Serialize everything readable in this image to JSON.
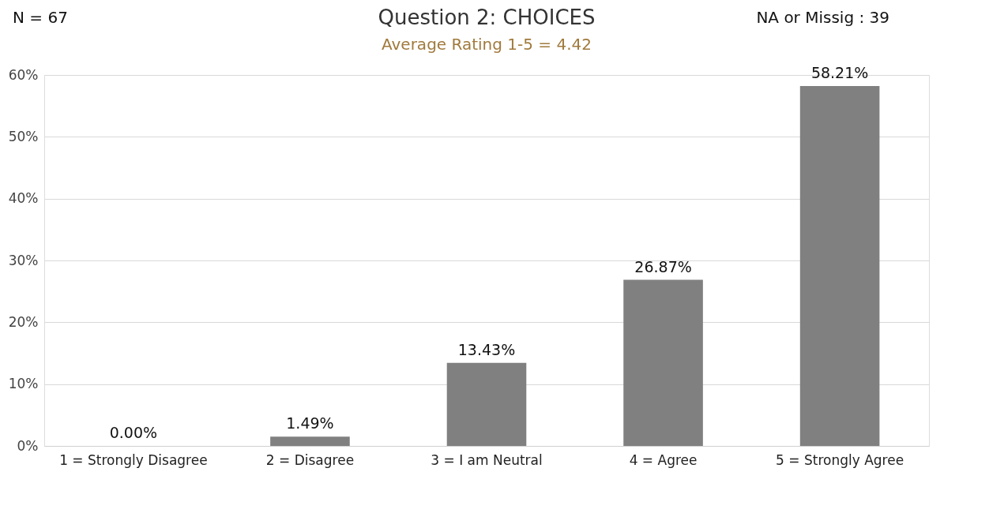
{
  "chart_data": {
    "type": "bar",
    "title": "Question 2: CHOICES",
    "subtitle": "Average Rating 1-5 = 4.42",
    "categories": [
      "1 = Strongly Disagree",
      "2 = Disagree",
      "3 = I am Neutral",
      "4 = Agree",
      "5 = Strongly Agree"
    ],
    "values": [
      0,
      1.49,
      13.43,
      26.87,
      58.21
    ],
    "value_labels": [
      "0.00%",
      "1.49%",
      "13.43%",
      "26.87%",
      "58.21%"
    ],
    "color": "#808080",
    "ylim": [
      0,
      60
    ],
    "yticks": [
      {
        "value": 0,
        "label": "0%"
      },
      {
        "value": 10,
        "label": "10%"
      },
      {
        "value": 20,
        "label": "20%"
      },
      {
        "value": 30,
        "label": "30%"
      },
      {
        "value": 40,
        "label": "40%"
      },
      {
        "value": 50,
        "label": "50%"
      },
      {
        "value": 60,
        "label": "60%"
      }
    ],
    "grid": "y",
    "annotations": [
      "N = 67",
      "NA or Missig : 39"
    ]
  }
}
